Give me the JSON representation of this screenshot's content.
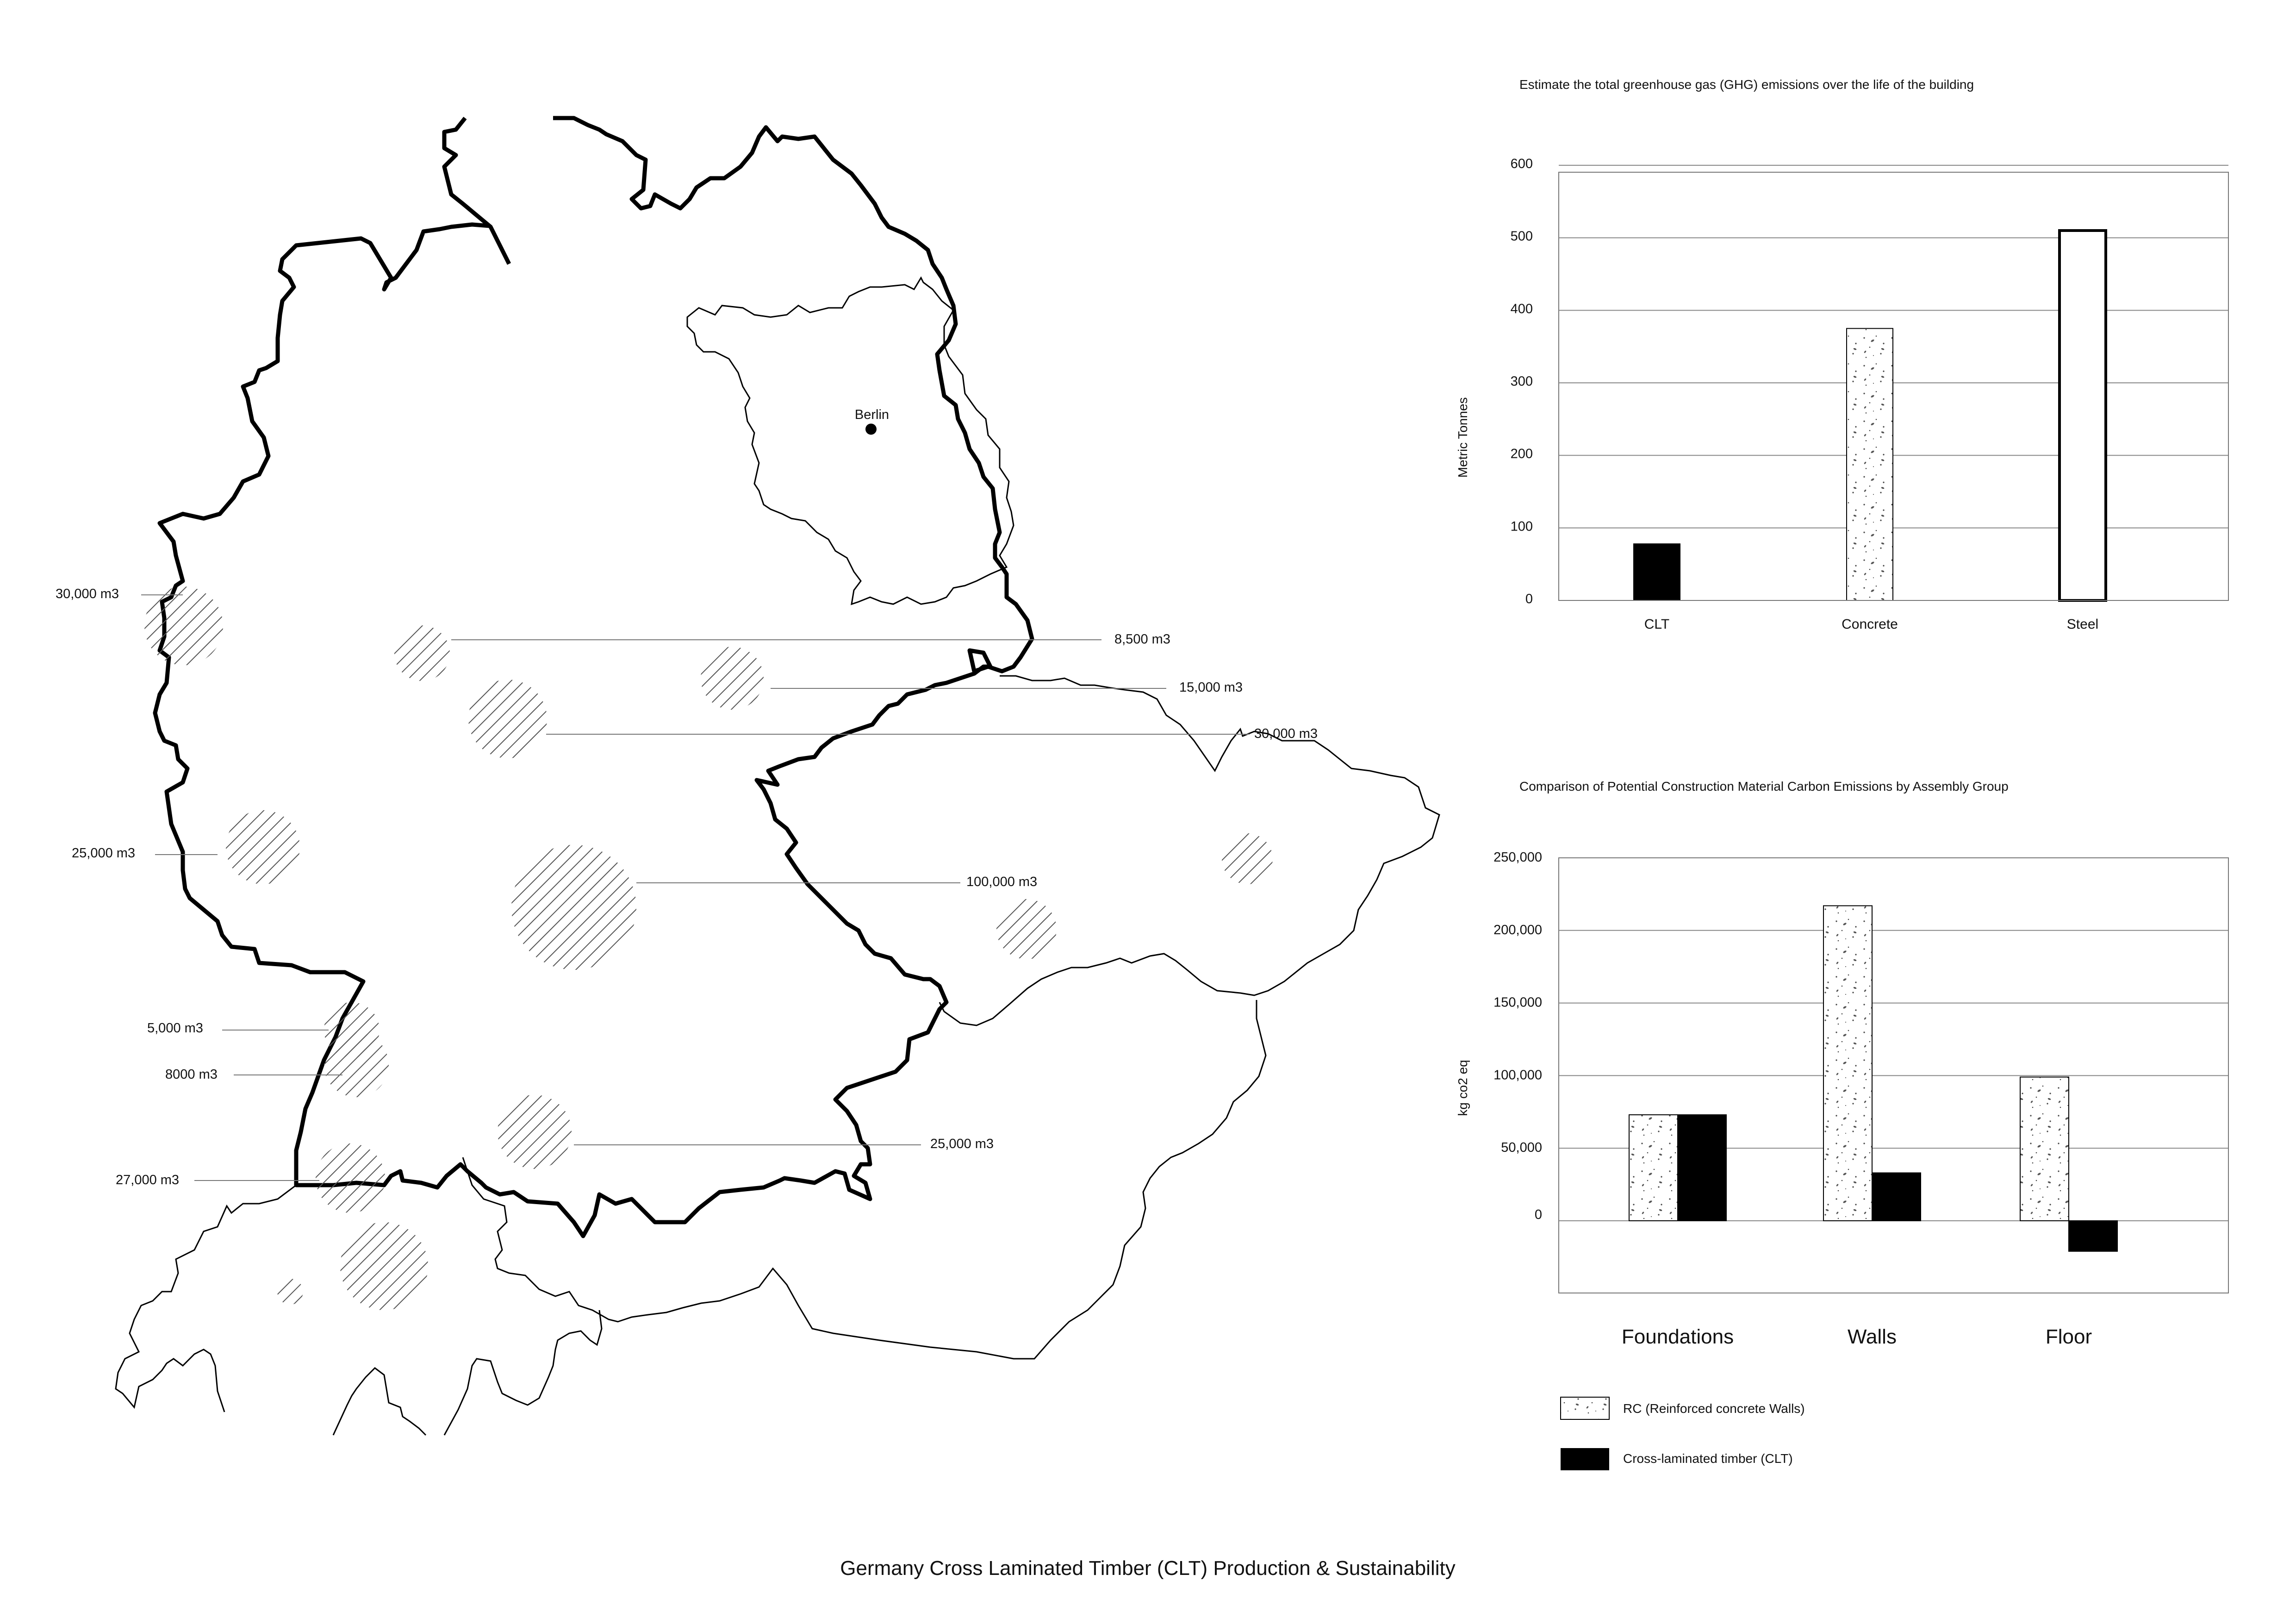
{
  "page_title": "Germany Cross Laminated Timber (CLT) Production & Sustainability",
  "map": {
    "city": "Berlin",
    "production_sites": [
      {
        "label": "30,000 m3"
      },
      {
        "label": "8,500  m3"
      },
      {
        "label": "15,000  m3"
      },
      {
        "label": "30,000  m3"
      },
      {
        "label": "25,000 m3"
      },
      {
        "label": "100,000  m3"
      },
      {
        "label": "5,000 m3"
      },
      {
        "label": "8000 m3"
      },
      {
        "label": "25,000  m3"
      },
      {
        "label": "27,000 m3"
      }
    ]
  },
  "legend": {
    "items": [
      {
        "label": "RC (Reinforced concrete Walls)",
        "pattern": "speckled"
      },
      {
        "label": "Cross-laminated timber (CLT)",
        "pattern": "solid-black"
      }
    ]
  },
  "chart_data": [
    {
      "type": "bar",
      "title": "Estimate the total greenhouse gas (GHG) emissions over the life of the building",
      "xlabel": "",
      "ylabel": "Metric Tonnes",
      "ylim": [
        0,
        600
      ],
      "yticks": [
        0,
        100,
        200,
        300,
        400,
        500,
        600
      ],
      "ytick_labels": [
        "0",
        "100",
        "200",
        "300",
        "400",
        "500",
        "600"
      ],
      "grid": true,
      "categories": [
        "CLT",
        "Concrete",
        "Steel"
      ],
      "values": [
        78,
        375,
        510
      ],
      "fills": [
        "solid-black",
        "speckled",
        "white"
      ]
    },
    {
      "type": "bar",
      "title": "Comparison of Potential Construction Material Carbon Emissions by Assembly Group",
      "xlabel": "",
      "ylabel": "kg co2 eq",
      "ylim": [
        -50000,
        250000
      ],
      "yticks": [
        0,
        50000,
        100000,
        150000,
        200000,
        250000
      ],
      "ytick_labels": [
        "0",
        "50,000",
        "100,000",
        "150,000",
        "200,000",
        "250,000"
      ],
      "grid": true,
      "legend_position": "bottom-left",
      "categories": [
        "Foundations",
        "Walls",
        "Floor"
      ],
      "series": [
        {
          "name": "RC (Reinforced concrete Walls)",
          "fill": "speckled",
          "values": [
            73000,
            217000,
            99000
          ]
        },
        {
          "name": "Cross-laminated timber (CLT)",
          "fill": "solid-black",
          "values": [
            73000,
            33000,
            -21000
          ]
        }
      ]
    }
  ]
}
